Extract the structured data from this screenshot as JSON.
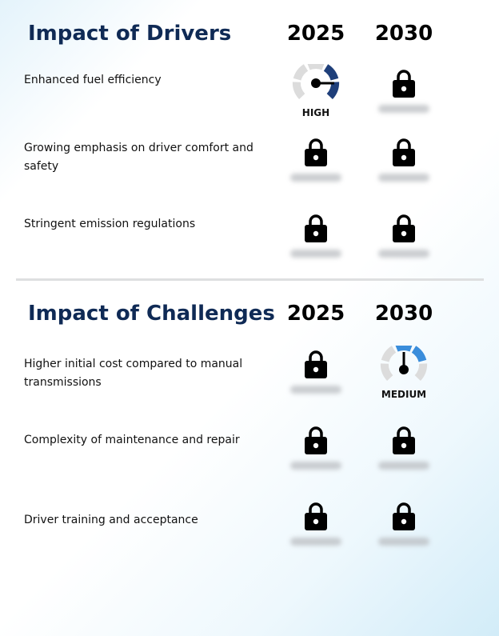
{
  "drivers": {
    "title": "Impact of Drivers",
    "year_1": "2025",
    "year_2": "2030",
    "rows": [
      {
        "label": "Enhanced fuel efficiency",
        "y2025": {
          "type": "gauge",
          "level": "HIGH"
        },
        "y2030": {
          "type": "locked"
        }
      },
      {
        "label": "Growing emphasis on driver comfort and safety",
        "y2025": {
          "type": "locked"
        },
        "y2030": {
          "type": "locked"
        }
      },
      {
        "label": "Stringent emission regulations",
        "y2025": {
          "type": "locked"
        },
        "y2030": {
          "type": "locked"
        }
      }
    ]
  },
  "challenges": {
    "title": "Impact of Challenges",
    "year_1": "2025",
    "year_2": "2030",
    "rows": [
      {
        "label": "Higher initial cost compared to manual transmissions",
        "y2025": {
          "type": "locked"
        },
        "y2030": {
          "type": "gauge",
          "level": "MEDIUM"
        }
      },
      {
        "label": "Complexity of maintenance and repair",
        "y2025": {
          "type": "locked"
        },
        "y2030": {
          "type": "locked"
        }
      },
      {
        "label": "Driver training and acceptance",
        "y2025": {
          "type": "locked"
        },
        "y2030": {
          "type": "locked"
        }
      }
    ]
  },
  "colors": {
    "title": "#0f2a55",
    "gauge_high": "#1f3f7a",
    "gauge_medium": "#3a8ddb",
    "gauge_track": "#dcdcdc"
  }
}
